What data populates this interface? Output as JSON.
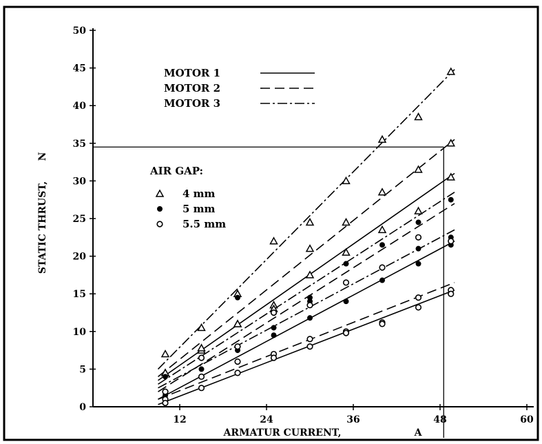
{
  "chart_data": {
    "type": "scatter",
    "title": "",
    "xlabel": "ARMATUR CURRENT,",
    "xunit": "A",
    "ylabel": "STATIC THRUST,",
    "yunit": "N",
    "xlim": [
      0,
      60
    ],
    "ylim": [
      0,
      50
    ],
    "x_ticks": [
      12,
      24,
      36,
      48,
      60
    ],
    "y_ticks": [
      0,
      5,
      10,
      15,
      20,
      25,
      30,
      35,
      40,
      45,
      50
    ],
    "grid": false,
    "legend_motors": [
      {
        "label": "MOTOR  1",
        "dash": "solid"
      },
      {
        "label": "MOTOR  2",
        "dash": "dashed"
      },
      {
        "label": "MOTOR  3",
        "dash": "dashdot"
      }
    ],
    "legend_air_gap_title": "AIR GAP:",
    "legend_air_gap": [
      {
        "label": "4 mm",
        "marker": "triangle"
      },
      {
        "label": "5 mm",
        "marker": "filled-circle"
      },
      {
        "label": "5.5 mm",
        "marker": "open-circle"
      }
    ],
    "reference_line": {
      "x": 48.5,
      "y": 34.5
    },
    "series": [
      {
        "motor": 3,
        "gap": "4 mm",
        "dash": "dashdot",
        "marker": "triangle",
        "line": [
          [
            9,
            5
          ],
          [
            50,
            44.8
          ]
        ],
        "points": [
          [
            10,
            7
          ],
          [
            15,
            10.5
          ],
          [
            20,
            15
          ],
          [
            25,
            22
          ],
          [
            30,
            24.5
          ],
          [
            35,
            30
          ],
          [
            40,
            35.5
          ],
          [
            45,
            38.5
          ],
          [
            49.5,
            44.5
          ]
        ]
      },
      {
        "motor": 2,
        "gap": "4 mm",
        "dash": "dashed",
        "marker": "triangle",
        "line": [
          [
            9,
            4
          ],
          [
            50,
            35.5
          ]
        ],
        "points": [
          [
            10,
            4.5
          ],
          [
            15,
            7.5
          ],
          [
            20,
            11
          ],
          [
            25,
            13.5
          ],
          [
            30,
            21
          ],
          [
            35,
            24.5
          ],
          [
            40,
            28.5
          ],
          [
            45,
            31.5
          ],
          [
            49.5,
            35
          ]
        ]
      },
      {
        "motor": 1,
        "gap": "4 mm",
        "dash": "solid",
        "marker": "triangle",
        "line": [
          [
            9,
            3.5
          ],
          [
            50,
            31
          ]
        ],
        "points": [
          [
            10,
            4.5
          ],
          [
            15,
            7.8
          ],
          [
            20,
            11
          ],
          [
            25,
            13
          ],
          [
            30,
            17.5
          ],
          [
            35,
            20.5
          ],
          [
            40,
            23.5
          ],
          [
            45,
            26
          ],
          [
            49.5,
            30.5
          ]
        ]
      },
      {
        "motor": 3,
        "gap": "5 mm",
        "dash": "dashdot",
        "marker": "filled-circle",
        "line": [
          [
            9,
            3
          ],
          [
            50,
            28.5
          ]
        ],
        "points": [
          [
            10,
            4
          ],
          [
            15,
            6.5
          ],
          [
            20,
            14.5
          ],
          [
            25,
            12.5
          ],
          [
            30,
            14.5
          ],
          [
            35,
            19
          ],
          [
            40,
            21.5
          ],
          [
            45,
            24.5
          ],
          [
            49.5,
            27.5
          ]
        ]
      },
      {
        "motor": 2,
        "gap": "5 mm",
        "dash": "dashed",
        "marker": "filled-circle",
        "line": [
          [
            9,
            2
          ],
          [
            50,
            27
          ]
        ],
        "points": [
          [
            10,
            2
          ],
          [
            15,
            5
          ],
          [
            20,
            8
          ],
          [
            25,
            10.5
          ],
          [
            30,
            14
          ],
          [
            35,
            16.5
          ],
          [
            40,
            18.5
          ],
          [
            45,
            21
          ],
          [
            49.5,
            22.5
          ]
        ]
      },
      {
        "motor": 1,
        "gap": "5 mm",
        "dash": "solid",
        "marker": "filled-circle",
        "line": [
          [
            9,
            1
          ],
          [
            50,
            22
          ]
        ],
        "points": [
          [
            10,
            1.5
          ],
          [
            15,
            4
          ],
          [
            20,
            7.5
          ],
          [
            25,
            9.5
          ],
          [
            30,
            11.8
          ],
          [
            35,
            14
          ],
          [
            40,
            16.8
          ],
          [
            45,
            19
          ],
          [
            49.5,
            21.5
          ]
        ]
      },
      {
        "motor": 3,
        "gap": "5.5 mm",
        "dash": "dashdot",
        "marker": "open-circle",
        "line": [
          [
            9,
            2.5
          ],
          [
            50,
            23.5
          ]
        ],
        "points": [
          [
            10,
            2
          ],
          [
            15,
            6.5
          ],
          [
            20,
            8
          ],
          [
            25,
            12.5
          ],
          [
            30,
            13.5
          ],
          [
            35,
            16.5
          ],
          [
            40,
            18.5
          ],
          [
            45,
            22.5
          ],
          [
            49.5,
            22
          ]
        ]
      },
      {
        "motor": 2,
        "gap": "5.5 mm",
        "dash": "dashed",
        "marker": "open-circle",
        "line": [
          [
            9,
            1
          ],
          [
            50,
            16.5
          ]
        ],
        "points": [
          [
            10,
            1
          ],
          [
            15,
            4
          ],
          [
            20,
            6
          ],
          [
            25,
            7
          ],
          [
            30,
            9
          ],
          [
            35,
            10
          ],
          [
            40,
            11.2
          ],
          [
            45,
            14.5
          ],
          [
            49.5,
            15.5
          ]
        ]
      },
      {
        "motor": 1,
        "gap": "5.5 mm",
        "dash": "solid",
        "marker": "open-circle",
        "line": [
          [
            9,
            0.3
          ],
          [
            50,
            15.5
          ]
        ],
        "points": [
          [
            10,
            0.5
          ],
          [
            15,
            2.5
          ],
          [
            20,
            4.5
          ],
          [
            25,
            6.5
          ],
          [
            30,
            8
          ],
          [
            35,
            9.8
          ],
          [
            40,
            11
          ],
          [
            45,
            13.2
          ],
          [
            49.5,
            15
          ]
        ]
      }
    ]
  }
}
